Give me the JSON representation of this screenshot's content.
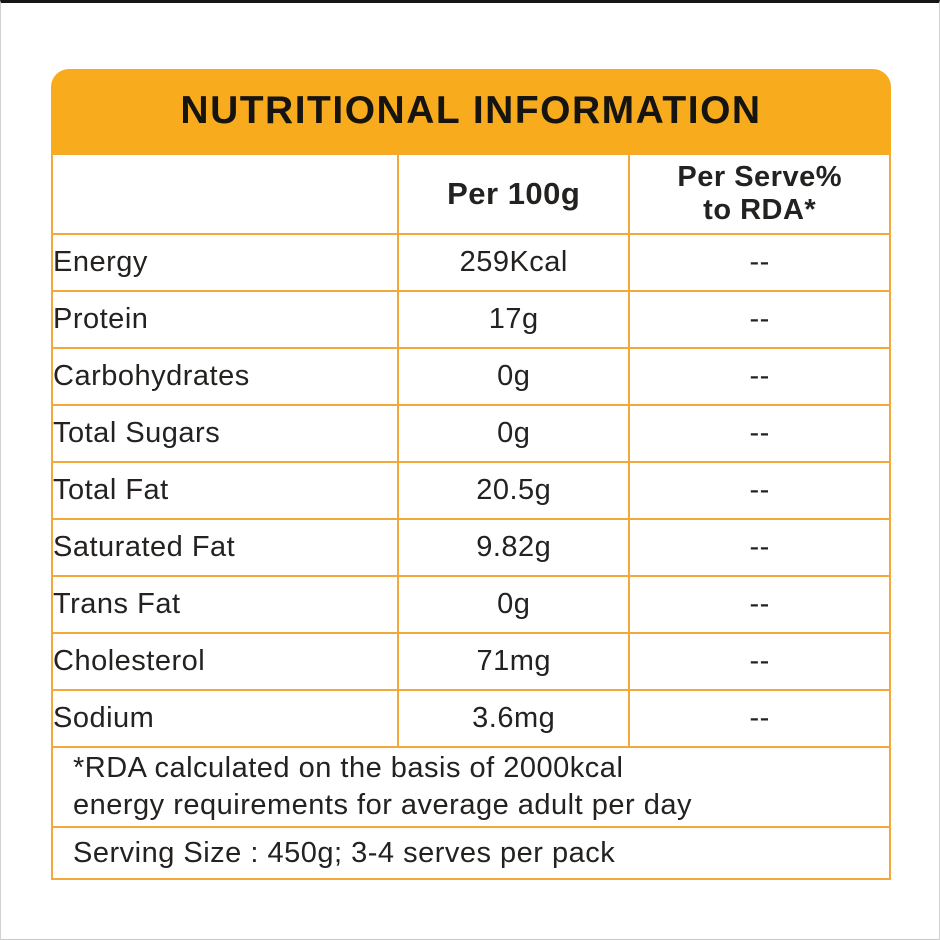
{
  "colors": {
    "band": "#F8AC1D",
    "grid_border": "#F3A93A",
    "text": "#242220",
    "background": "#FFFFFF"
  },
  "header": {
    "title": "NUTRITIONAL INFORMATION"
  },
  "table": {
    "columns": {
      "col1": "",
      "col2": "Per 100g",
      "col3_line1": "Per Serve%",
      "col3_line2": "to RDA*"
    },
    "rows": [
      {
        "label": "Energy",
        "per_100g": "259Kcal",
        "per_serve": "--"
      },
      {
        "label": "Protein",
        "per_100g": "17g",
        "per_serve": "--"
      },
      {
        "label": "Carbohydrates",
        "per_100g": "0g",
        "per_serve": "--"
      },
      {
        "label": "Total Sugars",
        "per_100g": "0g",
        "per_serve": "--"
      },
      {
        "label": "Total Fat",
        "per_100g": "20.5g",
        "per_serve": "--"
      },
      {
        "label": "Saturated Fat",
        "per_100g": "9.82g",
        "per_serve": "--"
      },
      {
        "label": "Trans Fat",
        "per_100g": "0g",
        "per_serve": "--"
      },
      {
        "label": "Cholesterol",
        "per_100g": "71mg",
        "per_serve": "--"
      },
      {
        "label": "Sodium",
        "per_100g": "3.6mg",
        "per_serve": "--"
      }
    ],
    "footnotes": {
      "rda_line1": "*RDA calculated on the basis of 2000kcal",
      "rda_line2": "energy requirements for average adult per day",
      "serving": "Serving Size : 450g; 3-4 serves per pack"
    }
  }
}
